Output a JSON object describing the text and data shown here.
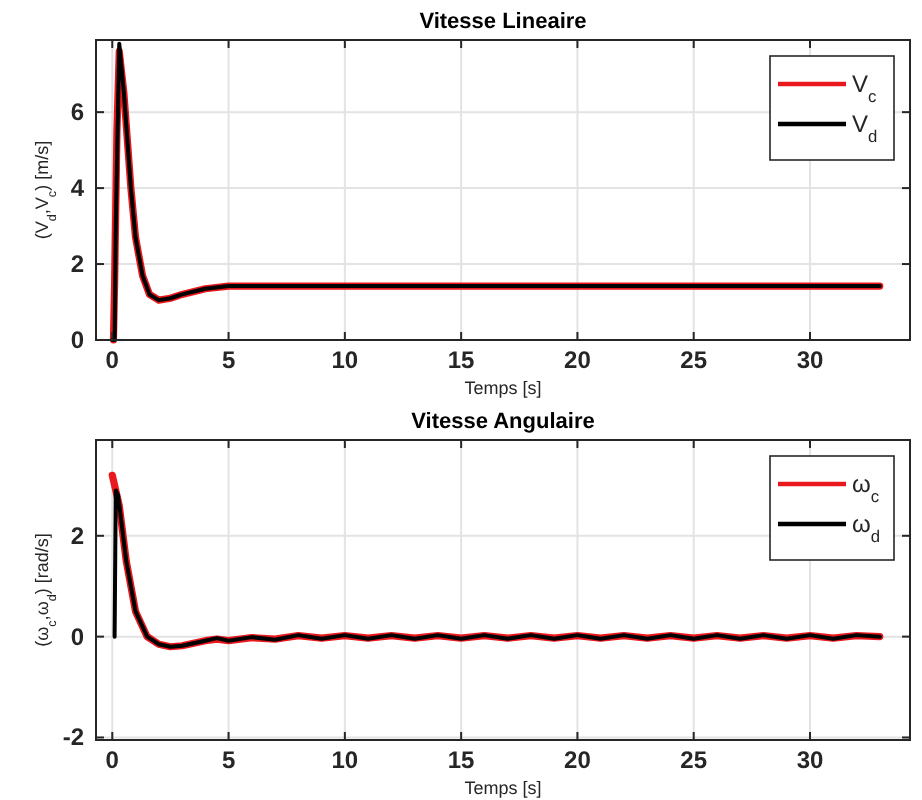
{
  "chart_data": [
    {
      "type": "line",
      "title": "Vitesse Lineaire",
      "xlabel": "Temps [s]",
      "ylabel": "(V$_{d}$,V$_{c}$) [m/s]",
      "xlim": [
        -0.7,
        34.3
      ],
      "ylim": [
        0,
        7.9
      ],
      "xticks": [
        0,
        5,
        10,
        15,
        20,
        25,
        30
      ],
      "yticks": [
        0,
        2,
        4,
        6
      ],
      "grid": true,
      "legend": "top right",
      "line_style": "solid",
      "series": [
        {
          "name": "V$_{c}$",
          "color": "#e8181c",
          "x": [
            0.05,
            0.1,
            0.2,
            0.3,
            0.5,
            0.8,
            1.0,
            1.3,
            1.6,
            2.0,
            2.5,
            3.0,
            4.0,
            5.0,
            33.0
          ],
          "values": [
            0,
            1.5,
            5.5,
            7.6,
            6.5,
            4.0,
            2.7,
            1.7,
            1.2,
            1.05,
            1.1,
            1.2,
            1.35,
            1.42,
            1.42
          ]
        },
        {
          "name": "V$_{d}$",
          "color": "#000000",
          "x": [
            0,
            0.1,
            0.15,
            0.3,
            0.5,
            0.8,
            1.0,
            1.3,
            1.6,
            2.0,
            2.5,
            3.0,
            4.0,
            5.0,
            33.0
          ],
          "values": [
            0,
            0,
            3.0,
            7.8,
            6.5,
            4.0,
            2.7,
            1.7,
            1.2,
            1.05,
            1.1,
            1.2,
            1.35,
            1.42,
            1.42
          ]
        }
      ]
    },
    {
      "type": "line",
      "title": "Vitesse Angulaire",
      "xlabel": "Temps [s]",
      "ylabel": "(ω$_{c}$,ω$_{d}$) [rad/s]",
      "xlim": [
        -0.7,
        34.3
      ],
      "ylim": [
        -2.05,
        3.9
      ],
      "xticks": [
        0,
        5,
        10,
        15,
        20,
        25,
        30
      ],
      "yticks": [
        -2,
        0,
        2
      ],
      "grid": true,
      "legend": "top right",
      "line_style": "solid",
      "series": [
        {
          "name": "ω$_{c}$",
          "color": "#e8181c",
          "x": [
            0,
            0.3,
            0.6,
            1.0,
            1.5,
            2.0,
            2.5,
            3.0,
            4.0,
            4.5,
            5.0,
            6.0,
            7.0,
            8.0,
            9.0,
            10.0,
            11.0,
            12.0,
            13.0,
            14.0,
            15.0,
            16.0,
            17.0,
            18.0,
            19.0,
            20.0,
            21.0,
            22.0,
            23.0,
            24.0,
            25.0,
            26.0,
            27.0,
            28.0,
            29.0,
            30.0,
            31.0,
            32.0,
            33.0
          ],
          "values": [
            3.2,
            2.6,
            1.5,
            0.5,
            0,
            -0.15,
            -0.2,
            -0.18,
            -0.08,
            -0.05,
            -0.08,
            -0.02,
            -0.05,
            0.02,
            -0.03,
            0.02,
            -0.03,
            0.02,
            -0.03,
            0.02,
            -0.03,
            0.02,
            -0.03,
            0.02,
            -0.03,
            0.02,
            -0.03,
            0.02,
            -0.03,
            0.02,
            -0.03,
            0.02,
            -0.03,
            0.02,
            -0.03,
            0.02,
            -0.03,
            0.02,
            0
          ]
        },
        {
          "name": "ω$_{d}$",
          "color": "#000000",
          "x": [
            0.1,
            0.15,
            0.25,
            0.6,
            1.0,
            1.5,
            2.0,
            2.5,
            3.0,
            4.0,
            4.5,
            5.0,
            6.0,
            7.0,
            8.0,
            9.0,
            10.0,
            11.0,
            12.0,
            13.0,
            14.0,
            15.0,
            16.0,
            17.0,
            18.0,
            19.0,
            20.0,
            21.0,
            22.0,
            23.0,
            24.0,
            25.0,
            26.0,
            27.0,
            28.0,
            29.0,
            30.0,
            31.0,
            32.0,
            33.0
          ],
          "values": [
            0,
            2.9,
            2.8,
            1.5,
            0.5,
            0,
            -0.15,
            -0.2,
            -0.18,
            -0.08,
            -0.03,
            -0.08,
            -0.01,
            -0.06,
            0.03,
            -0.04,
            0.03,
            -0.04,
            0.03,
            -0.04,
            0.03,
            -0.04,
            0.03,
            -0.04,
            0.03,
            -0.04,
            0.03,
            -0.04,
            0.03,
            -0.04,
            0.03,
            -0.04,
            0.03,
            -0.04,
            0.03,
            -0.04,
            0.03,
            -0.04,
            0.03,
            0
          ]
        }
      ]
    }
  ]
}
